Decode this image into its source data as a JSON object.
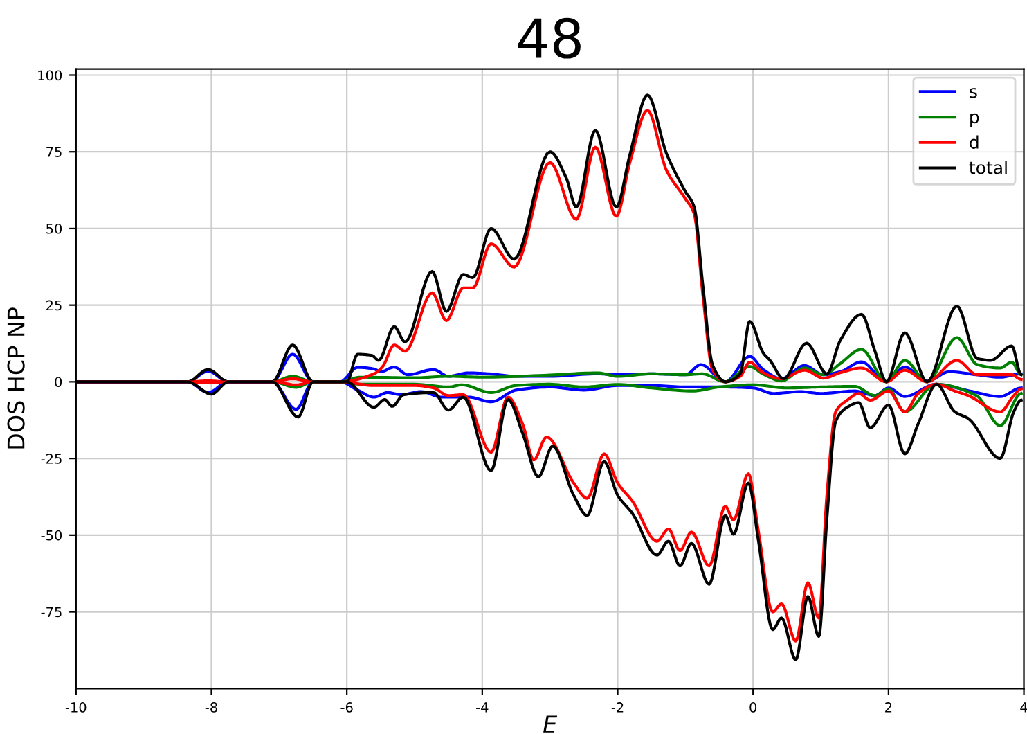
{
  "chart_data": {
    "type": "line",
    "title": "48",
    "xlabel": "E",
    "ylabel": "DOS HCP NP",
    "xlim": [
      -10,
      4
    ],
    "ylim": [
      -100,
      102
    ],
    "xticks": [
      -10,
      -8,
      -6,
      -4,
      -2,
      0,
      2,
      4
    ],
    "yticks": [
      -75,
      -50,
      -25,
      0,
      25,
      50,
      75,
      100
    ],
    "grid": true,
    "legend": "top right",
    "marker": "none",
    "line_style": "solid",
    "series": [
      {
        "name": "s",
        "color": "#0000ff",
        "x": [
          -10,
          -8.35,
          -8.05,
          -7.75,
          -7.1,
          -6.8,
          -6.5,
          -6.1,
          -5.84,
          -5.6,
          -5.5,
          -5.3,
          -5.1,
          -4.72,
          -4.5,
          -4.2,
          -3.9,
          -3.5,
          -3,
          -2.3,
          -2,
          -1.5,
          -1,
          -0.77,
          -0.41,
          -0.05,
          0.15,
          0.42,
          0.76,
          1.04,
          1.29,
          1.6,
          1.97,
          2.24,
          2.57,
          2.9,
          3.3,
          3.65,
          3.96
        ],
        "values": [
          0,
          0,
          3.5,
          0,
          0,
          9,
          0,
          0,
          4.7,
          4.2,
          3.3,
          4.8,
          2.3,
          4,
          1.8,
          2.9,
          2.6,
          1.8,
          1.8,
          2.6,
          2.3,
          2.6,
          2.3,
          5.6,
          0,
          8.3,
          4,
          1,
          5.3,
          2.3,
          3.3,
          6.5,
          0,
          4.8,
          0.2,
          3.3,
          2.3,
          1.5,
          2.6
        ]
      },
      {
        "name": "p",
        "color": "#008000",
        "x": [
          -7.1,
          -6.8,
          -6.5,
          -6.1,
          -5.8,
          -5,
          -4.5,
          -4,
          -3,
          -2.3,
          -2,
          -1.5,
          -1,
          -0.75,
          -0.41,
          -0.05,
          0.15,
          0.42,
          0.76,
          1.04,
          1.29,
          1.6,
          1.97,
          2.24,
          2.57,
          3.01,
          3.31,
          3.65,
          3.82,
          3.96
        ],
        "values": [
          0,
          1.8,
          0,
          0,
          1.5,
          1.3,
          1.8,
          1.5,
          2.2,
          2.9,
          1.8,
          2.6,
          2.3,
          2.6,
          0,
          5,
          2.5,
          0.3,
          4.5,
          2.3,
          6,
          10.6,
          0,
          7,
          0,
          14.4,
          5.6,
          4.5,
          6.4,
          2.3
        ]
      },
      {
        "name": "d",
        "color": "#ff0000",
        "x": [
          -10,
          -8.35,
          -8.05,
          -7.75,
          -7.1,
          -6.8,
          -6.5,
          -6.1,
          -5.6,
          -5.47,
          -5.3,
          -5.14,
          -4.74,
          -4.53,
          -4.28,
          -4.14,
          -3.87,
          -3.53,
          -3,
          -2.61,
          -2.33,
          -2.02,
          -1.82,
          -1.56,
          -1.28,
          -1.01,
          -0.87,
          -0.74,
          -0.6,
          -0.41,
          -0.19,
          -0.05,
          0.15,
          0.42,
          0.76,
          1.04,
          1.29,
          1.6,
          1.97,
          2.24,
          2.57,
          3.01,
          3.31,
          3.82,
          3.96
        ],
        "values": [
          0,
          0,
          0.3,
          0,
          0,
          1,
          0,
          0,
          2.6,
          5,
          12,
          10,
          29,
          20,
          30.6,
          30.6,
          45,
          37.4,
          71.5,
          53,
          76.5,
          54,
          71.5,
          88.5,
          69,
          60,
          54.8,
          28,
          4,
          0,
          1.8,
          6.4,
          2.9,
          1,
          3.8,
          1.2,
          3,
          4.5,
          0,
          3.8,
          0,
          7,
          2.3,
          2.3,
          0.8
        ]
      },
      {
        "name": "total",
        "color": "#000000",
        "x": [
          -10,
          -8.35,
          -8.05,
          -7.75,
          -7.1,
          -6.8,
          -6.5,
          -6.1,
          -6,
          -5.84,
          -5.63,
          -5.53,
          -5.3,
          -5.14,
          -4.74,
          -4.53,
          -4.28,
          -4.14,
          -3.87,
          -3.53,
          -3,
          -2.76,
          -2.61,
          -2.33,
          -2.02,
          -1.82,
          -1.56,
          -1.28,
          -1.01,
          -0.87,
          -0.74,
          -0.6,
          -0.41,
          -0.19,
          -0.05,
          0.15,
          0.25,
          0.45,
          0.79,
          1.09,
          1.29,
          1.6,
          1.8,
          1.97,
          2.24,
          2.57,
          3.01,
          3.31,
          3.51,
          3.82,
          3.96
        ],
        "values": [
          0,
          0,
          4,
          0,
          0,
          12,
          0,
          0,
          0,
          9,
          8.6,
          7,
          18,
          13,
          36,
          23,
          35,
          34,
          50,
          40,
          75,
          66.5,
          57,
          82,
          57,
          74,
          93.5,
          74.5,
          62.4,
          57,
          31,
          5.6,
          0,
          2.6,
          19.7,
          9.4,
          7,
          1,
          12.6,
          2.6,
          13.6,
          22,
          10,
          0,
          16,
          0,
          24.7,
          7.6,
          7,
          11.7,
          2.3
        ]
      },
      {
        "color": "#0000ff",
        "x": [
          -10,
          -8.35,
          -8.05,
          -7.75,
          -7.1,
          -6.75,
          -6.5,
          -6.1,
          -5.84,
          -5.6,
          -5.4,
          -5.2,
          -4.9,
          -4.6,
          -4.2,
          -3.87,
          -3.5,
          -3,
          -2.5,
          -2,
          -1.5,
          -1,
          -0.5,
          0,
          0.3,
          0.7,
          1,
          1.5,
          1.8,
          2,
          2.24,
          2.7,
          3.2,
          3.65,
          3.96
        ],
        "values": [
          0,
          0,
          -3.5,
          0,
          0,
          -9,
          0,
          0,
          -2.7,
          -5,
          -3.5,
          -4.2,
          -3.2,
          -5,
          -5,
          -6.5,
          -2.7,
          -1.7,
          -2.7,
          -1.2,
          -1.2,
          -1.7,
          -1.7,
          -2,
          -3.8,
          -3.2,
          -3.8,
          -3,
          -4.5,
          -2,
          -4.8,
          -0.8,
          -3,
          -4.8,
          -2
        ]
      },
      {
        "color": "#008000",
        "x": [
          -7.1,
          -6.75,
          -6.5,
          -6.1,
          -5.8,
          -5,
          -4.5,
          -4.3,
          -3.87,
          -3.5,
          -3,
          -2.5,
          -2,
          -1.5,
          -0.9,
          -0.5,
          0,
          0.5,
          1,
          1.5,
          1.8,
          2,
          2.24,
          2.7,
          3.3,
          3.65,
          3.96
        ],
        "values": [
          0,
          -1.8,
          0,
          0,
          -0.8,
          -0.8,
          -1.7,
          -1,
          -3.5,
          -1.2,
          -0.8,
          -1.7,
          -0.9,
          -2,
          -3,
          -1.7,
          -1,
          -2,
          -1.7,
          -1.5,
          -4.5,
          -2.3,
          -9.8,
          -0.8,
          -4.5,
          -14.3,
          -3.8
        ]
      },
      {
        "color": "#ff0000",
        "x": [
          -10,
          -8.35,
          -8.05,
          -7.75,
          -7.1,
          -6.75,
          -6.5,
          -6.1,
          -5.6,
          -5,
          -4.72,
          -4.5,
          -4.28,
          -3.87,
          -3.62,
          -3.4,
          -3.24,
          -3.05,
          -2.65,
          -2.45,
          -2.2,
          -2,
          -1.78,
          -1.42,
          -1.25,
          -1.08,
          -0.91,
          -0.65,
          -0.41,
          -0.29,
          -0.07,
          0.08,
          0.29,
          0.42,
          0.63,
          0.81,
          0.97,
          1.09,
          1.22,
          1.39,
          1.56,
          1.73,
          2,
          2.24,
          2.44,
          2.71,
          2.98,
          3.18,
          3.65,
          3.85,
          3.96
        ],
        "values": [
          0,
          0,
          -0.3,
          0,
          0,
          -1,
          0,
          0,
          -1.2,
          -1.2,
          -2,
          -4.5,
          -4.2,
          -23,
          -5,
          -14,
          -25.5,
          -18,
          -33,
          -38,
          -23.5,
          -33,
          -39,
          -52,
          -48,
          -55,
          -49,
          -60,
          -40.6,
          -45,
          -30,
          -49,
          -75,
          -72.4,
          -84.5,
          -65.5,
          -77,
          -37,
          -9.8,
          -6,
          -3.8,
          -6,
          -3,
          -9.8,
          -3.8,
          -0.8,
          -3,
          -4.5,
          -9.8,
          -4.5,
          -2.3
        ]
      },
      {
        "color": "#000000",
        "x": [
          -10,
          -8.35,
          -8,
          -7.75,
          -7.1,
          -6.72,
          -6.5,
          -6.1,
          -6,
          -5.6,
          -5.44,
          -5.33,
          -5.16,
          -4.72,
          -4.5,
          -4.28,
          -3.87,
          -3.62,
          -3.4,
          -3.17,
          -2.96,
          -2.65,
          -2.45,
          -2.2,
          -2,
          -1.78,
          -1.42,
          -1.25,
          -1.08,
          -0.91,
          -0.65,
          -0.41,
          -0.29,
          -0.07,
          0.08,
          0.29,
          0.42,
          0.63,
          0.81,
          0.97,
          1.09,
          1.22,
          1.39,
          1.56,
          1.73,
          2,
          2.24,
          2.44,
          2.71,
          2.98,
          3.18,
          3.65,
          3.85,
          3.96
        ],
        "values": [
          0,
          0,
          -4,
          0,
          0,
          -11.5,
          0,
          0,
          0,
          -8.3,
          -5.8,
          -8,
          -4.2,
          -3.5,
          -9.2,
          -5,
          -29,
          -5.8,
          -17,
          -31,
          -21,
          -37,
          -43.6,
          -26,
          -37,
          -43,
          -56.5,
          -52,
          -60,
          -52.7,
          -66,
          -43.6,
          -49.7,
          -33,
          -52,
          -80.8,
          -77,
          -90.6,
          -70,
          -83,
          -44.7,
          -12.9,
          -8.3,
          -6.8,
          -15,
          -7.6,
          -23.5,
          -13.6,
          -0.8,
          -9.8,
          -12,
          -25,
          -9.8,
          -6
        ]
      }
    ]
  }
}
